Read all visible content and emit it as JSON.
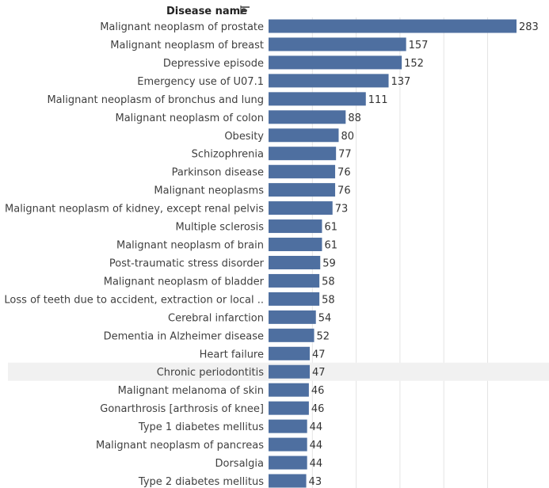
{
  "chart_data": {
    "type": "bar",
    "orientation": "horizontal",
    "header": "Disease name",
    "sort_icon": "sort-descending-icon",
    "categories": [
      "Malignant neoplasm of prostate",
      "Malignant neoplasm of breast",
      "Depressive episode",
      "Emergency use of U07.1",
      "Malignant neoplasm of bronchus and lung",
      "Malignant neoplasm of colon",
      "Obesity",
      "Schizophrenia",
      "Parkinson disease",
      "Malignant neoplasms",
      "Malignant neoplasm of kidney, except renal pelvis",
      "Multiple sclerosis",
      "Malignant neoplasm of brain",
      "Post-traumatic stress disorder",
      "Malignant neoplasm of bladder",
      "Loss of teeth due to accident, extraction or local ..",
      "Cerebral infarction",
      "Dementia in Alzheimer disease",
      "Heart failure",
      "Chronic periodontitis",
      "Malignant melanoma of skin",
      "Gonarthrosis [arthrosis of knee]",
      "Type 1 diabetes mellitus",
      "Malignant neoplasm of pancreas",
      "Dorsalgia",
      "Type 2 diabetes mellitus"
    ],
    "values": [
      283,
      157,
      152,
      137,
      111,
      88,
      80,
      77,
      76,
      76,
      73,
      61,
      61,
      59,
      58,
      58,
      54,
      52,
      47,
      47,
      46,
      46,
      44,
      44,
      44,
      43
    ],
    "highlighted_category": "Chronic periodontitis",
    "xlim": [
      0,
      290
    ],
    "grid": true,
    "bar_color": "#4e6fa0",
    "highlight_row_color": "#f1f1f1",
    "grid_color": "#e4e4e4"
  }
}
